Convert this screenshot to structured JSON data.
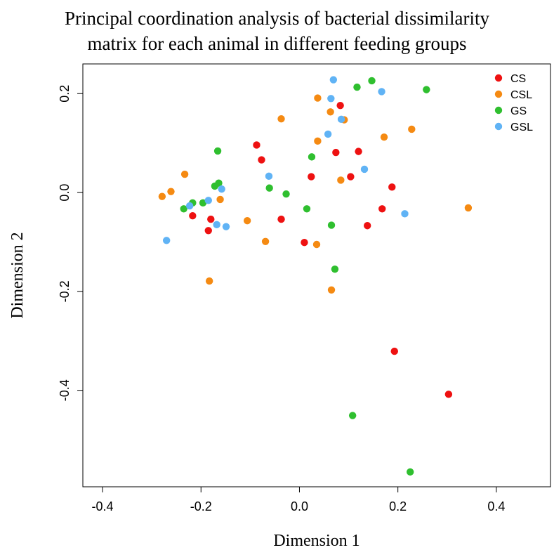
{
  "chart_data": {
    "type": "scatter",
    "title_line1": "Principal coordination analysis of bacterial dissimilarity",
    "title_line2": "matrix for each animal in different feeding groups",
    "xlabel": "Dimension  1",
    "ylabel": "Dimension  2",
    "xlim": [
      -0.44,
      0.51
    ],
    "ylim": [
      -0.595,
      0.26
    ],
    "xticks": [
      -0.4,
      -0.2,
      0.0,
      0.2,
      0.4
    ],
    "xtick_labels": [
      "-0.4",
      "-0.2",
      "0.0",
      "0.2",
      "0.4"
    ],
    "yticks": [
      -0.4,
      -0.2,
      0.0,
      0.2
    ],
    "ytick_labels": [
      "-0.4",
      "-0.2",
      "0.0",
      "0.2"
    ],
    "grid": false,
    "legend_position": "top-right",
    "series": [
      {
        "name": "CS",
        "color": "#ee1111",
        "points": [
          [
            0.083,
            0.176
          ],
          [
            -0.087,
            0.096
          ],
          [
            -0.077,
            0.066
          ],
          [
            0.12,
            0.083
          ],
          [
            0.074,
            0.081
          ],
          [
            0.024,
            0.032
          ],
          [
            0.104,
            0.032
          ],
          [
            0.188,
            0.011
          ],
          [
            0.168,
            -0.033
          ],
          [
            -0.217,
            -0.047
          ],
          [
            -0.18,
            -0.054
          ],
          [
            -0.037,
            -0.054
          ],
          [
            0.138,
            -0.067
          ],
          [
            -0.185,
            -0.077
          ],
          [
            0.01,
            -0.101
          ],
          [
            0.193,
            -0.321
          ],
          [
            0.303,
            -0.408
          ]
        ]
      },
      {
        "name": "CSL",
        "color": "#f58a12",
        "points": [
          [
            0.037,
            0.191
          ],
          [
            0.063,
            0.163
          ],
          [
            0.091,
            0.147
          ],
          [
            -0.037,
            0.149
          ],
          [
            0.228,
            0.128
          ],
          [
            0.172,
            0.112
          ],
          [
            0.037,
            0.104
          ],
          [
            -0.233,
            0.037
          ],
          [
            -0.261,
            0.002
          ],
          [
            -0.279,
            -0.008
          ],
          [
            -0.161,
            -0.014
          ],
          [
            0.084,
            0.025
          ],
          [
            0.343,
            -0.031
          ],
          [
            -0.106,
            -0.057
          ],
          [
            -0.069,
            -0.099
          ],
          [
            0.035,
            -0.105
          ],
          [
            -0.183,
            -0.179
          ],
          [
            0.065,
            -0.197
          ]
        ]
      },
      {
        "name": "GS",
        "color": "#2fbf2f",
        "points": [
          [
            0.147,
            0.226
          ],
          [
            0.117,
            0.213
          ],
          [
            0.258,
            0.208
          ],
          [
            -0.166,
            0.084
          ],
          [
            0.025,
            0.072
          ],
          [
            -0.164,
            0.019
          ],
          [
            -0.172,
            0.013
          ],
          [
            -0.061,
            0.009
          ],
          [
            -0.027,
            -0.003
          ],
          [
            -0.196,
            -0.021
          ],
          [
            -0.217,
            -0.021
          ],
          [
            -0.235,
            -0.033
          ],
          [
            0.015,
            -0.033
          ],
          [
            0.065,
            -0.066
          ],
          [
            0.072,
            -0.155
          ],
          [
            0.108,
            -0.451
          ],
          [
            0.225,
            -0.565
          ]
        ]
      },
      {
        "name": "GSL",
        "color": "#60b3f5",
        "points": [
          [
            0.069,
            0.228
          ],
          [
            0.167,
            0.204
          ],
          [
            0.064,
            0.19
          ],
          [
            0.085,
            0.148
          ],
          [
            0.058,
            0.118
          ],
          [
            0.132,
            0.047
          ],
          [
            -0.062,
            0.033
          ],
          [
            -0.158,
            0.007
          ],
          [
            -0.223,
            -0.027
          ],
          [
            -0.185,
            -0.016
          ],
          [
            -0.168,
            -0.065
          ],
          [
            -0.149,
            -0.069
          ],
          [
            0.214,
            -0.043
          ],
          [
            -0.27,
            -0.097
          ]
        ]
      }
    ]
  }
}
